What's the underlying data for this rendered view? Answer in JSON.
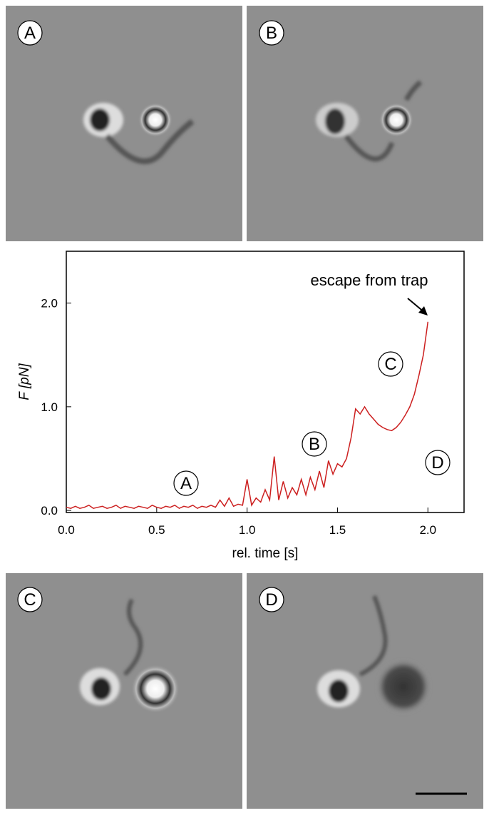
{
  "panels": [
    {
      "label": "A"
    },
    {
      "label": "B"
    },
    {
      "label": "C"
    },
    {
      "label": "D"
    }
  ],
  "chart_data": {
    "type": "line",
    "xlabel": "rel. time [s]",
    "ylabel": "F [pN]",
    "annotations": [
      "escape from trap",
      "A",
      "B",
      "C",
      "D"
    ],
    "xlim": [
      0,
      2.2
    ],
    "ylim": [
      -0.02,
      2.5
    ],
    "xticks": [
      {
        "value": 0,
        "label": "0.0"
      },
      {
        "value": 0.5,
        "label": "0.5"
      },
      {
        "value": 1,
        "label": "1.0"
      },
      {
        "value": 1.5,
        "label": "1.5"
      },
      {
        "value": 2,
        "label": "2.0"
      }
    ],
    "yticks": [
      {
        "value": 0,
        "label": "0.0"
      },
      {
        "value": 1,
        "label": "1.0"
      },
      {
        "value": 2,
        "label": "2.0"
      }
    ],
    "series": [
      {
        "name": "force",
        "color": "#cc1f1f",
        "x": [
          0,
          0.025,
          0.05,
          0.075,
          0.1,
          0.125,
          0.15,
          0.175,
          0.2,
          0.225,
          0.25,
          0.275,
          0.3,
          0.325,
          0.35,
          0.375,
          0.4,
          0.425,
          0.45,
          0.475,
          0.5,
          0.525,
          0.55,
          0.575,
          0.6,
          0.625,
          0.65,
          0.675,
          0.7,
          0.725,
          0.75,
          0.775,
          0.8,
          0.825,
          0.85,
          0.875,
          0.9,
          0.925,
          0.95,
          0.975,
          1.0,
          1.025,
          1.05,
          1.075,
          1.1,
          1.125,
          1.15,
          1.175,
          1.2,
          1.225,
          1.25,
          1.275,
          1.3,
          1.325,
          1.35,
          1.375,
          1.4,
          1.425,
          1.45,
          1.475,
          1.5,
          1.525,
          1.55,
          1.575,
          1.6,
          1.625,
          1.65,
          1.675,
          1.7,
          1.725,
          1.75,
          1.775,
          1.8,
          1.825,
          1.85,
          1.875,
          1.9,
          1.925,
          1.95,
          1.975,
          2.0
        ],
        "values": [
          0.03,
          0.02,
          0.04,
          0.02,
          0.03,
          0.05,
          0.02,
          0.03,
          0.04,
          0.02,
          0.03,
          0.05,
          0.02,
          0.04,
          0.03,
          0.02,
          0.04,
          0.03,
          0.02,
          0.05,
          0.03,
          0.02,
          0.04,
          0.03,
          0.05,
          0.02,
          0.04,
          0.03,
          0.05,
          0.02,
          0.04,
          0.03,
          0.05,
          0.03,
          0.1,
          0.04,
          0.12,
          0.04,
          0.06,
          0.05,
          0.3,
          0.05,
          0.12,
          0.08,
          0.2,
          0.1,
          0.52,
          0.1,
          0.28,
          0.12,
          0.22,
          0.15,
          0.3,
          0.15,
          0.32,
          0.2,
          0.38,
          0.22,
          0.48,
          0.35,
          0.45,
          0.42,
          0.5,
          0.7,
          0.98,
          0.93,
          1.0,
          0.93,
          0.88,
          0.83,
          0.8,
          0.78,
          0.77,
          0.8,
          0.85,
          0.92,
          1.0,
          1.12,
          1.3,
          1.5,
          1.82
        ]
      }
    ]
  }
}
